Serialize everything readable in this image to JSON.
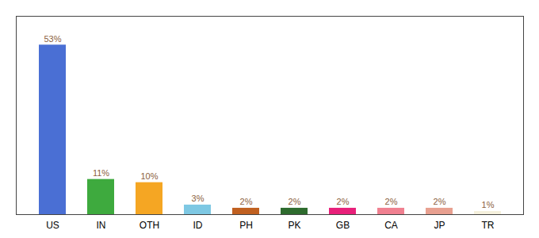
{
  "chart_data": {
    "type": "bar",
    "categories": [
      "US",
      "IN",
      "OTH",
      "ID",
      "PH",
      "PK",
      "GB",
      "CA",
      "JP",
      "TR"
    ],
    "values": [
      53,
      11,
      10,
      3,
      2,
      2,
      2,
      2,
      2,
      1
    ],
    "value_labels": [
      "53%",
      "11%",
      "10%",
      "3%",
      "2%",
      "2%",
      "2%",
      "2%",
      "2%",
      "1%"
    ],
    "colors": [
      "#4A6FD4",
      "#3EAA3E",
      "#F5A623",
      "#7EC8E3",
      "#C06020",
      "#2E6B2E",
      "#E8207A",
      "#F08090",
      "#E8A090",
      "#F5F0DC"
    ],
    "ylim": [
      0,
      62
    ],
    "data_labels": true,
    "tick_labels": "x"
  }
}
